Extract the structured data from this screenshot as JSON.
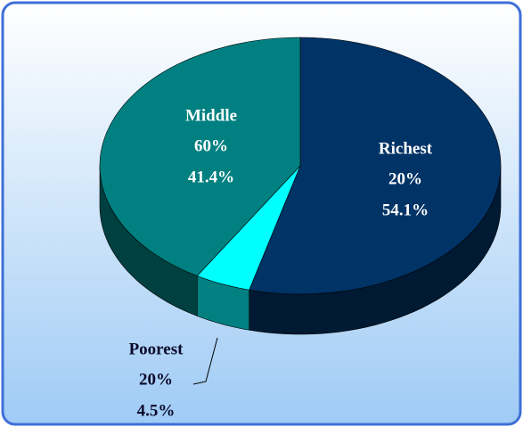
{
  "chart_data": {
    "type": "pie3d",
    "categories": [
      "Richest",
      "Poorest",
      "Middle"
    ],
    "population_shares": [
      "20%",
      "20%",
      "60%"
    ],
    "values": [
      54.1,
      4.5,
      41.4
    ],
    "value_labels": [
      "54.1%",
      "4.5%",
      "41.4%"
    ],
    "colors": [
      "#003366",
      "#00ffff",
      "#008080"
    ],
    "side_colors": [
      "#001a33",
      "#008080",
      "#004040"
    ]
  }
}
